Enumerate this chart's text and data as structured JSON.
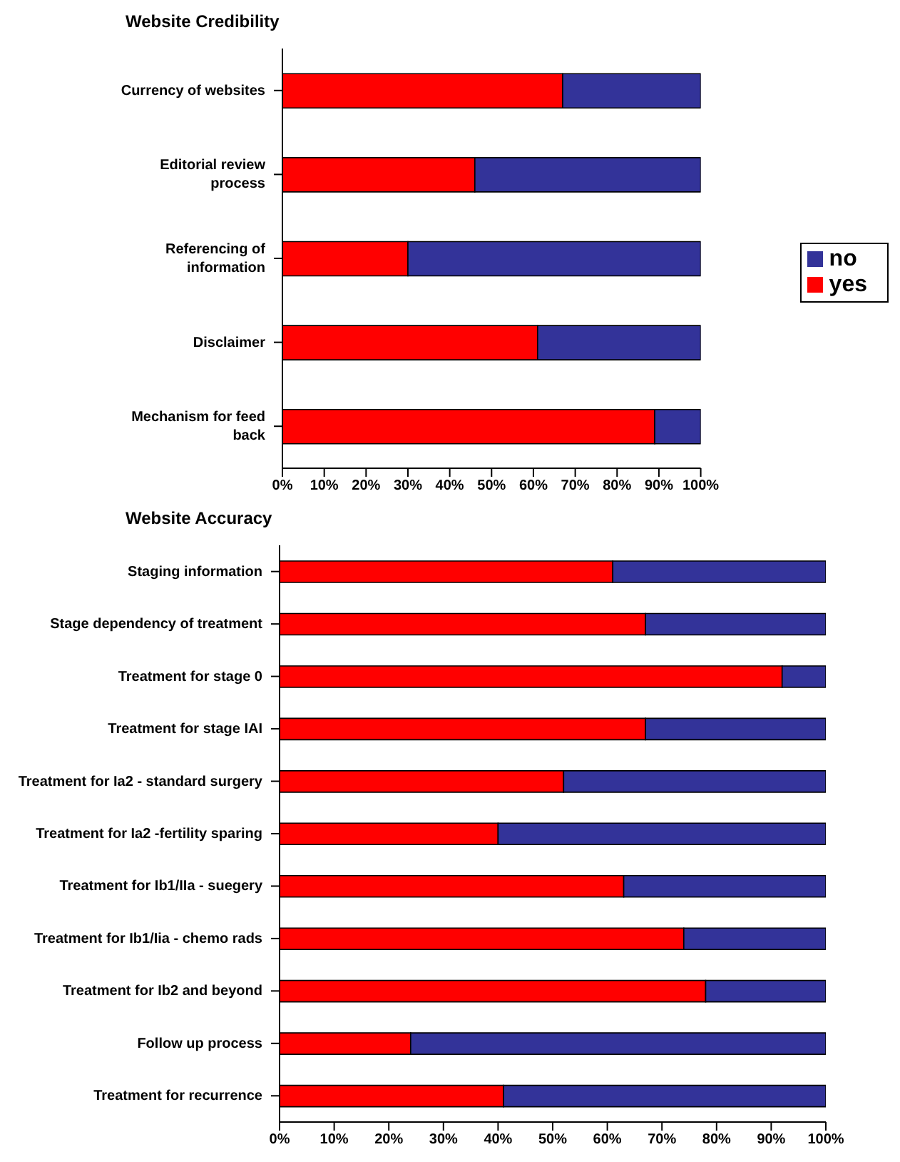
{
  "chart_data": [
    {
      "type": "bar",
      "title": "Website Credibility",
      "orientation": "horizontal",
      "stacked": true,
      "legend": "right",
      "categories": [
        "Currency of websites",
        "Editorial review process",
        "Referencing of information",
        "Disclaimer",
        "Mechanism for feed back"
      ],
      "series": [
        {
          "name": "yes",
          "color": "#ff0000",
          "values": [
            67,
            46,
            30,
            61,
            89
          ]
        },
        {
          "name": "no",
          "color": "#333399",
          "values": [
            33,
            54,
            70,
            39,
            11
          ]
        }
      ],
      "xlim": [
        0,
        100
      ],
      "xticks": [
        {
          "value": 0,
          "label": "0%"
        },
        {
          "value": 10,
          "label": "10%"
        },
        {
          "value": 20,
          "label": "20%"
        },
        {
          "value": 30,
          "label": "30%"
        },
        {
          "value": 40,
          "label": "40%"
        },
        {
          "value": 50,
          "label": "50%"
        },
        {
          "value": 60,
          "label": "60%"
        },
        {
          "value": 70,
          "label": "70%"
        },
        {
          "value": 80,
          "label": "80%"
        },
        {
          "value": 90,
          "label": "90%"
        },
        {
          "value": 100,
          "label": "100%"
        }
      ]
    },
    {
      "type": "bar",
      "title": "Website Accuracy",
      "orientation": "horizontal",
      "stacked": true,
      "categories": [
        "Staging information",
        "Stage dependency of treatment",
        "Treatment for stage 0",
        "Treatment for stage IAI",
        "Treatment for Ia2 - standard surgery",
        "Treatment for Ia2 -fertility sparing",
        "Treatment for Ib1/IIa - suegery",
        "Treatment for Ib1/Iia - chemo rads",
        "Treatment for Ib2 and beyond",
        "Follow up process",
        "Treatment for recurrence"
      ],
      "series": [
        {
          "color": "#ff0000",
          "values": [
            61,
            67,
            92,
            67,
            52,
            40,
            63,
            74,
            78,
            24,
            41
          ]
        },
        {
          "color": "#333399",
          "values": [
            39,
            33,
            8,
            33,
            48,
            60,
            37,
            26,
            22,
            76,
            59
          ]
        }
      ],
      "xlim": [
        0,
        100
      ],
      "xticks": [
        {
          "value": 0,
          "label": "0%"
        },
        {
          "value": 10,
          "label": "10%"
        },
        {
          "value": 20,
          "label": "20%"
        },
        {
          "value": 30,
          "label": "30%"
        },
        {
          "value": 40,
          "label": "40%"
        },
        {
          "value": 50,
          "label": "50%"
        },
        {
          "value": 60,
          "label": "60%"
        },
        {
          "value": 70,
          "label": "70%"
        },
        {
          "value": 80,
          "label": "80%"
        },
        {
          "value": 90,
          "label": "90%"
        },
        {
          "value": 100,
          "label": "100%"
        }
      ]
    }
  ]
}
